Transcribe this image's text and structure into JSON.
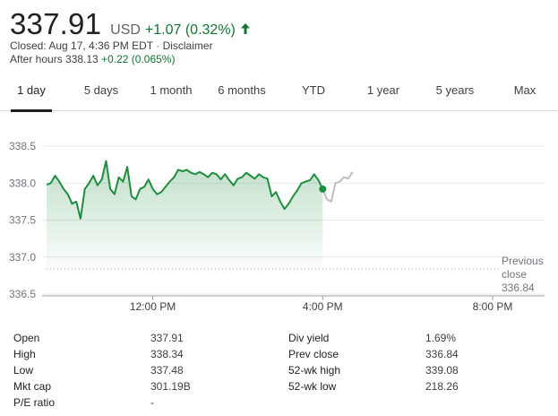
{
  "quote": {
    "price": "337.91",
    "currency": "USD",
    "change": "+1.07 (0.32%)",
    "change_direction": "up",
    "up_color": "#137333",
    "closed_text": "Closed: Aug 17, 4:36 PM EDT",
    "disclaimer": "Disclaimer",
    "after_hours_label": "After hours 338.13",
    "after_hours_change": "+0.22 (0.065%)"
  },
  "tabs": [
    {
      "label": "1 day",
      "active": true
    },
    {
      "label": "5 days",
      "active": false
    },
    {
      "label": "1 month",
      "active": false
    },
    {
      "label": "6 months",
      "active": false
    },
    {
      "label": "YTD",
      "active": false
    },
    {
      "label": "1 year",
      "active": false
    },
    {
      "label": "5 years",
      "active": false
    },
    {
      "label": "Max",
      "active": false
    }
  ],
  "chart_data": {
    "type": "line",
    "ylim": [
      336.5,
      338.5
    ],
    "y_ticks": [
      "338.5",
      "338.0",
      "337.5",
      "337.0",
      "336.5"
    ],
    "x_tick_labels": [
      "12:00 PM",
      "4:00 PM",
      "8:00 PM"
    ],
    "x_range_hours": [
      9.5,
      20.0
    ],
    "x_tick_hours": [
      12,
      16,
      20
    ],
    "previous_close": 336.84,
    "previous_close_label": "Previous close",
    "previous_close_value": "336.84",
    "line_color": "#1e8e3e",
    "after_hours_color": "#bdbdbd",
    "regular_session": {
      "hours": [
        9.5,
        9.6,
        9.7,
        9.8,
        9.9,
        10.0,
        10.1,
        10.2,
        10.3,
        10.4,
        10.5,
        10.6,
        10.7,
        10.8,
        10.9,
        11.0,
        11.1,
        11.2,
        11.3,
        11.4,
        11.5,
        11.6,
        11.7,
        11.8,
        11.9,
        12.0,
        12.1,
        12.2,
        12.3,
        12.4,
        12.5,
        12.6,
        12.7,
        12.8,
        12.9,
        13.0,
        13.1,
        13.2,
        13.3,
        13.4,
        13.5,
        13.6,
        13.7,
        13.8,
        13.9,
        14.0,
        14.1,
        14.2,
        14.3,
        14.4,
        14.5,
        14.6,
        14.7,
        14.8,
        14.9,
        15.0,
        15.1,
        15.2,
        15.3,
        15.4,
        15.5,
        15.6,
        15.7,
        15.8,
        15.9,
        16.0
      ],
      "prices": [
        337.98,
        338.0,
        338.1,
        338.02,
        337.92,
        337.85,
        337.72,
        337.75,
        337.52,
        337.92,
        338.0,
        338.1,
        337.97,
        338.05,
        338.3,
        337.92,
        337.85,
        338.08,
        338.02,
        338.22,
        337.82,
        337.78,
        337.92,
        337.95,
        338.05,
        337.92,
        337.85,
        337.88,
        337.95,
        338.02,
        338.08,
        338.18,
        338.16,
        338.18,
        338.14,
        338.12,
        338.15,
        338.12,
        338.08,
        338.14,
        338.12,
        338.05,
        338.12,
        338.04,
        337.97,
        338.06,
        338.08,
        338.14,
        338.1,
        338.06,
        338.12,
        338.08,
        338.06,
        337.82,
        337.88,
        337.75,
        337.65,
        337.72,
        337.82,
        337.9,
        338.0,
        338.02,
        338.04,
        338.12,
        338.04,
        337.92
      ],
      "last_point": {
        "hour": 16.0,
        "price": 337.92
      }
    },
    "after_hours_session": {
      "hours": [
        16.0,
        16.1,
        16.2,
        16.3,
        16.4,
        16.5,
        16.6,
        16.7
      ],
      "prices": [
        337.92,
        337.78,
        337.75,
        338.0,
        338.02,
        338.08,
        338.06,
        338.15
      ]
    }
  },
  "stats": {
    "left": [
      {
        "label": "Open",
        "value": "337.91"
      },
      {
        "label": "High",
        "value": "338.34"
      },
      {
        "label": "Low",
        "value": "337.48"
      },
      {
        "label": "Mkt cap",
        "value": "301.19B"
      },
      {
        "label": "P/E ratio",
        "value": "-"
      }
    ],
    "right": [
      {
        "label": "Div yield",
        "value": "1.69%"
      },
      {
        "label": "Prev close",
        "value": "336.84"
      },
      {
        "label": "52-wk high",
        "value": "339.08"
      },
      {
        "label": "52-wk low",
        "value": "218.26"
      }
    ]
  }
}
